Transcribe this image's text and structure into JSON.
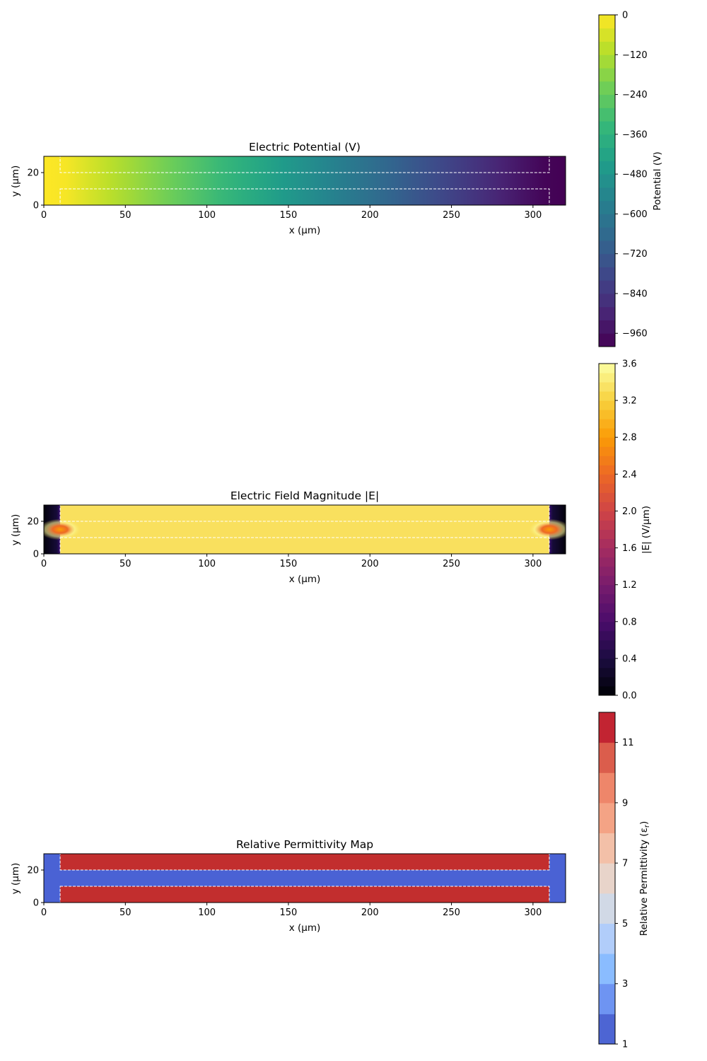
{
  "chart_data": [
    {
      "type": "heatmap",
      "title": "Electric Potential (V)",
      "xlabel": "x (μm)",
      "ylabel": "y (μm)",
      "xlim": [
        0,
        320
      ],
      "ylim": [
        0,
        30
      ],
      "xticks": [
        "0",
        "50",
        "100",
        "150",
        "200",
        "250",
        "300"
      ],
      "yticks": [
        "0",
        "20"
      ],
      "colormap": "viridis",
      "colorbar": {
        "label": "Potential (V)",
        "range": [
          -1000,
          0
        ],
        "ticks": [
          {
            "value": 0,
            "label": "0"
          },
          {
            "value": -120,
            "label": "−120"
          },
          {
            "value": -240,
            "label": "−240"
          },
          {
            "value": -360,
            "label": "−360"
          },
          {
            "value": -480,
            "label": "−480"
          },
          {
            "value": -600,
            "label": "−600"
          },
          {
            "value": -720,
            "label": "−720"
          },
          {
            "value": -840,
            "label": "−840"
          },
          {
            "value": -960,
            "label": "−960"
          }
        ]
      },
      "field": {
        "description_profile": "potential along x",
        "x": [
          0,
          10,
          310,
          320
        ],
        "values": [
          0,
          0,
          -1000,
          -1000
        ]
      },
      "regions": [
        {
          "name": "upper-dielectric",
          "x": [
            10,
            310
          ],
          "y": [
            20,
            30
          ]
        },
        {
          "name": "lower-dielectric",
          "x": [
            10,
            310
          ],
          "y": [
            0,
            10
          ]
        }
      ]
    },
    {
      "type": "heatmap",
      "title": "Electric Field Magnitude |E|",
      "xlabel": "x (μm)",
      "ylabel": "y (μm)",
      "xlim": [
        0,
        320
      ],
      "ylim": [
        0,
        30
      ],
      "xticks": [
        "0",
        "50",
        "100",
        "150",
        "200",
        "250",
        "300"
      ],
      "yticks": [
        "0",
        "20"
      ],
      "colormap": "inferno",
      "colorbar": {
        "label": "|E| (V/μm)",
        "range": [
          0,
          3.6
        ],
        "ticks": [
          {
            "value": 0,
            "label": "0.0"
          },
          {
            "value": 0.4,
            "label": "0.4"
          },
          {
            "value": 0.8,
            "label": "0.8"
          },
          {
            "value": 1.2,
            "label": "1.2"
          },
          {
            "value": 1.6,
            "label": "1.6"
          },
          {
            "value": 2.0,
            "label": "2.0"
          },
          {
            "value": 2.4,
            "label": "2.4"
          },
          {
            "value": 2.8,
            "label": "2.8"
          },
          {
            "value": 3.2,
            "label": "3.2"
          },
          {
            "value": 3.6,
            "label": "3.6"
          }
        ]
      },
      "field": {
        "outer_value": 0.05,
        "inner_value": 3.33,
        "hotspot_value": 3.55,
        "hotspots": [
          {
            "x": 10,
            "y": 15
          },
          {
            "x": 310,
            "y": 15
          }
        ]
      },
      "regions": [
        {
          "name": "upper-dielectric",
          "x": [
            10,
            310
          ],
          "y": [
            20,
            30
          ]
        },
        {
          "name": "lower-dielectric",
          "x": [
            10,
            310
          ],
          "y": [
            0,
            10
          ]
        }
      ]
    },
    {
      "type": "heatmap",
      "title": "Relative Permittivity Map",
      "xlabel": "x (μm)",
      "ylabel": "y (μm)",
      "xlim": [
        0,
        320
      ],
      "ylim": [
        0,
        30
      ],
      "xticks": [
        "0",
        "50",
        "100",
        "150",
        "200",
        "250",
        "300"
      ],
      "yticks": [
        "0",
        "20"
      ],
      "colormap": "coolwarm",
      "colorbar": {
        "label": "Relative Permittivity (εr)",
        "range": [
          1,
          12
        ],
        "levels": 11,
        "ticks": [
          {
            "value": 1,
            "label": "1"
          },
          {
            "value": 3,
            "label": "3"
          },
          {
            "value": 5,
            "label": "5"
          },
          {
            "value": 7,
            "label": "7"
          },
          {
            "value": 9,
            "label": "9"
          },
          {
            "value": 11,
            "label": "11"
          }
        ]
      },
      "field": {
        "background_value": 1,
        "region_value": 12
      },
      "regions": [
        {
          "name": "upper-dielectric",
          "x": [
            10,
            310
          ],
          "y": [
            20,
            30
          ]
        },
        {
          "name": "lower-dielectric",
          "x": [
            10,
            310
          ],
          "y": [
            0,
            10
          ]
        }
      ]
    }
  ]
}
